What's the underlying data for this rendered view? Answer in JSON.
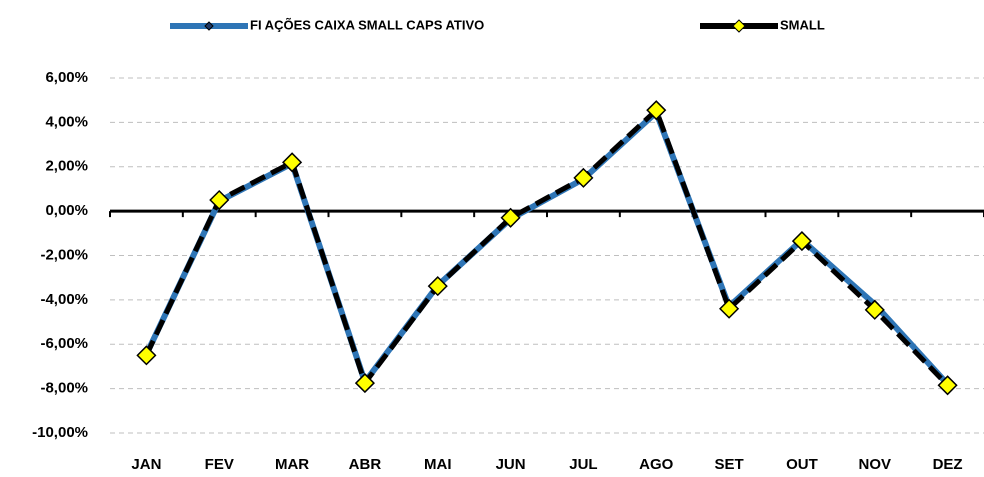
{
  "chart_data": {
    "type": "line",
    "categories": [
      "JAN",
      "FEV",
      "MAR",
      "ABR",
      "MAI",
      "JUN",
      "JUL",
      "AGO",
      "SET",
      "OUT",
      "NOV",
      "DEZ"
    ],
    "series": [
      {
        "name": "FI AÇÕES CAIXA SMALL CAPS ATIVO",
        "color": "#2e75b6",
        "marker_color": "#1f3864",
        "values": [
          -6.45,
          0.45,
          2.15,
          -7.7,
          -3.35,
          -0.35,
          1.45,
          4.45,
          -4.3,
          -1.3,
          -4.2,
          -7.8
        ]
      },
      {
        "name": "SMALL",
        "color": "#000000",
        "marker_color": "#ffff00",
        "values": [
          -6.5,
          0.5,
          2.2,
          -7.75,
          -3.38,
          -0.3,
          1.5,
          4.55,
          -4.4,
          -1.35,
          -4.45,
          -7.85
        ]
      }
    ],
    "ylim": [
      -10,
      6
    ],
    "yticks": [
      {
        "value": -10,
        "label": "-10,00%"
      },
      {
        "value": -8,
        "label": "-8,00%"
      },
      {
        "value": -6,
        "label": "-6,00%"
      },
      {
        "value": -4,
        "label": "-4,00%"
      },
      {
        "value": -2,
        "label": "-2,00%"
      },
      {
        "value": 0,
        "label": "0,00%"
      },
      {
        "value": 2,
        "label": "2,00%"
      },
      {
        "value": 4,
        "label": "4,00%"
      },
      {
        "value": 6,
        "label": "6,00%"
      }
    ],
    "grid": true,
    "legend": "top"
  }
}
